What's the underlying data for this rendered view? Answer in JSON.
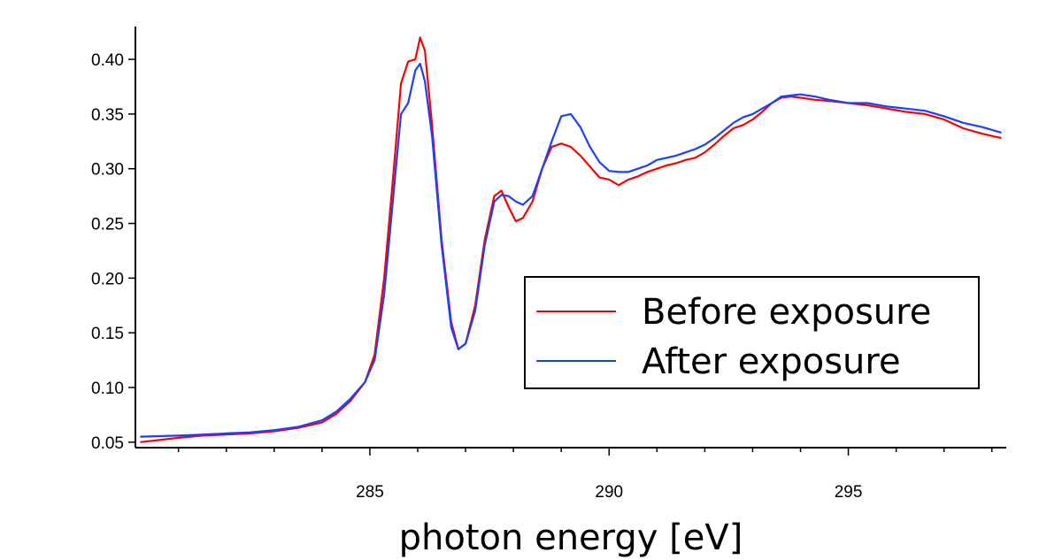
{
  "chart_data": {
    "type": "line",
    "title": "",
    "xlabel": "photon energy [eV]",
    "ylabel": "",
    "xlim": [
      280.1,
      298.3
    ],
    "ylim": [
      0.045,
      0.43
    ],
    "x_ticks": [
      285,
      290,
      295
    ],
    "x_tick_labels": [
      "285",
      "290",
      "295"
    ],
    "y_ticks": [
      0.05,
      0.1,
      0.15,
      0.2,
      0.25,
      0.3,
      0.35,
      0.4
    ],
    "y_tick_labels": [
      "0.05",
      "0.10",
      "0.15",
      "0.20",
      "0.25",
      "0.30",
      "0.35",
      "0.40"
    ],
    "grid": false,
    "legend_position": "center-right",
    "series": [
      {
        "name": "Before exposure",
        "color": "#ff0000",
        "x": [
          280.2,
          281.0,
          281.5,
          282.0,
          282.5,
          283.0,
          283.5,
          284.0,
          284.3,
          284.6,
          284.9,
          285.1,
          285.3,
          285.5,
          285.65,
          285.8,
          285.95,
          286.05,
          286.15,
          286.3,
          286.5,
          286.7,
          286.85,
          287.0,
          287.2,
          287.4,
          287.6,
          287.75,
          287.9,
          288.05,
          288.2,
          288.4,
          288.6,
          288.8,
          289.0,
          289.2,
          289.4,
          289.6,
          289.8,
          290.0,
          290.2,
          290.4,
          290.6,
          290.8,
          291.0,
          291.2,
          291.4,
          291.6,
          291.8,
          292.0,
          292.2,
          292.4,
          292.6,
          292.8,
          293.0,
          293.2,
          293.4,
          293.6,
          293.8,
          294.0,
          294.3,
          294.6,
          295.0,
          295.4,
          295.8,
          296.2,
          296.6,
          297.0,
          297.4,
          297.8,
          298.2
        ],
        "y": [
          0.05,
          0.054,
          0.056,
          0.057,
          0.058,
          0.06,
          0.063,
          0.068,
          0.076,
          0.088,
          0.105,
          0.13,
          0.2,
          0.3,
          0.378,
          0.398,
          0.4,
          0.42,
          0.408,
          0.34,
          0.235,
          0.16,
          0.135,
          0.14,
          0.175,
          0.235,
          0.275,
          0.28,
          0.265,
          0.252,
          0.255,
          0.27,
          0.3,
          0.32,
          0.323,
          0.32,
          0.312,
          0.302,
          0.292,
          0.29,
          0.285,
          0.29,
          0.293,
          0.297,
          0.3,
          0.303,
          0.305,
          0.308,
          0.31,
          0.315,
          0.322,
          0.33,
          0.337,
          0.34,
          0.345,
          0.352,
          0.36,
          0.365,
          0.366,
          0.365,
          0.363,
          0.362,
          0.36,
          0.358,
          0.355,
          0.352,
          0.35,
          0.345,
          0.337,
          0.332,
          0.328
        ]
      },
      {
        "name": "After exposure",
        "color": "#1a40ff",
        "x": [
          280.2,
          281.0,
          281.5,
          282.0,
          282.5,
          283.0,
          283.5,
          284.0,
          284.3,
          284.6,
          284.9,
          285.1,
          285.3,
          285.5,
          285.65,
          285.8,
          285.95,
          286.05,
          286.15,
          286.3,
          286.5,
          286.7,
          286.85,
          287.0,
          287.2,
          287.4,
          287.6,
          287.75,
          287.9,
          288.05,
          288.2,
          288.4,
          288.6,
          288.8,
          289.0,
          289.2,
          289.4,
          289.6,
          289.8,
          290.0,
          290.2,
          290.4,
          290.6,
          290.8,
          291.0,
          291.2,
          291.4,
          291.6,
          291.8,
          292.0,
          292.2,
          292.4,
          292.6,
          292.8,
          293.0,
          293.2,
          293.4,
          293.6,
          293.8,
          294.0,
          294.3,
          294.6,
          295.0,
          295.4,
          295.8,
          296.2,
          296.6,
          297.0,
          297.4,
          297.8,
          298.2
        ],
        "y": [
          0.055,
          0.056,
          0.057,
          0.058,
          0.059,
          0.061,
          0.064,
          0.07,
          0.078,
          0.09,
          0.105,
          0.125,
          0.185,
          0.28,
          0.35,
          0.36,
          0.39,
          0.396,
          0.38,
          0.33,
          0.23,
          0.155,
          0.135,
          0.14,
          0.17,
          0.23,
          0.27,
          0.276,
          0.275,
          0.27,
          0.267,
          0.275,
          0.3,
          0.325,
          0.348,
          0.35,
          0.338,
          0.32,
          0.306,
          0.298,
          0.297,
          0.297,
          0.3,
          0.303,
          0.308,
          0.31,
          0.312,
          0.315,
          0.318,
          0.322,
          0.328,
          0.335,
          0.342,
          0.347,
          0.35,
          0.355,
          0.36,
          0.366,
          0.367,
          0.368,
          0.366,
          0.363,
          0.36,
          0.36,
          0.357,
          0.355,
          0.353,
          0.348,
          0.342,
          0.338,
          0.333
        ]
      }
    ]
  }
}
